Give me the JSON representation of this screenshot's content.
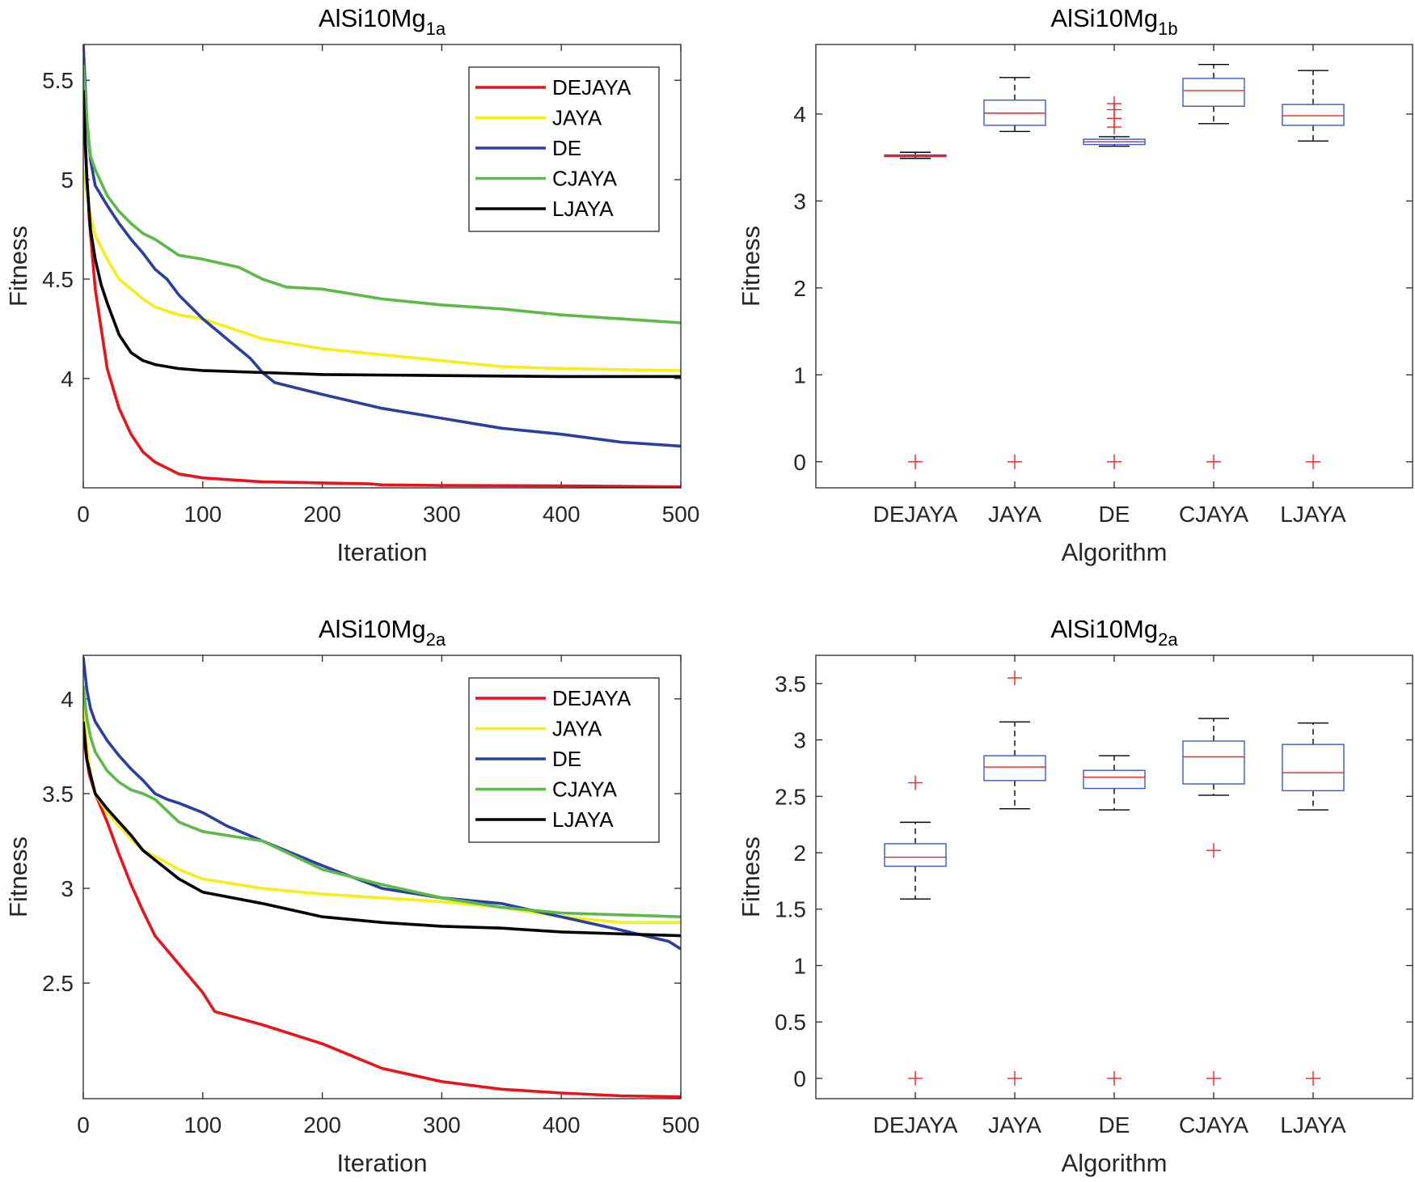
{
  "colors": {
    "DEJAYA": "#e8141b",
    "JAYA": "#f5ee19",
    "DE": "#2a3fa0",
    "CJAYA": "#5cba47",
    "LJAYA": "#000000",
    "box": "#3a58c8",
    "median": "#ee2222",
    "outlier": "#ee2222",
    "whisker": "#000000"
  },
  "chart_data": [
    {
      "id": "p1a",
      "type": "line",
      "title": "AlSi10Mg",
      "title_sub": "1a",
      "xlabel": "Iteration",
      "ylabel": "Fitness",
      "xlim": [
        0,
        500
      ],
      "ylim": [
        3.45,
        5.68
      ],
      "xticks": [
        0,
        100,
        200,
        300,
        400,
        500
      ],
      "yticks": [
        4,
        4.5,
        5,
        5.5
      ],
      "ytick_labels": [
        "4",
        "4.5",
        "5",
        "5.5"
      ],
      "legend": [
        "DEJAYA",
        "JAYA",
        "DE",
        "CJAYA",
        "LJAYA"
      ],
      "legend_position": "top-right",
      "series": [
        {
          "name": "DEJAYA",
          "x": [
            0,
            5,
            10,
            20,
            30,
            40,
            50,
            60,
            80,
            100,
            150,
            200,
            240,
            250,
            300,
            400,
            500
          ],
          "y": [
            5.35,
            4.8,
            4.45,
            4.05,
            3.85,
            3.72,
            3.63,
            3.58,
            3.52,
            3.5,
            3.48,
            3.475,
            3.47,
            3.465,
            3.462,
            3.46,
            3.455
          ]
        },
        {
          "name": "JAYA",
          "x": [
            0,
            5,
            10,
            20,
            30,
            40,
            50,
            60,
            80,
            100,
            150,
            200,
            250,
            300,
            350,
            400,
            450,
            500
          ],
          "y": [
            5.05,
            4.85,
            4.72,
            4.6,
            4.5,
            4.45,
            4.4,
            4.36,
            4.32,
            4.3,
            4.2,
            4.15,
            4.12,
            4.09,
            4.06,
            4.05,
            4.045,
            4.04
          ]
        },
        {
          "name": "DE",
          "x": [
            0,
            3,
            6,
            10,
            20,
            30,
            40,
            50,
            60,
            70,
            80,
            100,
            120,
            140,
            150,
            160,
            200,
            250,
            300,
            350,
            400,
            450,
            500
          ],
          "y": [
            5.68,
            5.3,
            5.1,
            4.97,
            4.87,
            4.78,
            4.7,
            4.63,
            4.55,
            4.5,
            4.42,
            4.3,
            4.2,
            4.1,
            4.03,
            3.98,
            3.92,
            3.85,
            3.8,
            3.75,
            3.72,
            3.68,
            3.66
          ]
        },
        {
          "name": "CJAYA",
          "x": [
            0,
            3,
            6,
            10,
            20,
            30,
            40,
            50,
            60,
            80,
            100,
            130,
            150,
            170,
            200,
            250,
            300,
            350,
            400,
            450,
            500
          ],
          "y": [
            5.58,
            5.3,
            5.12,
            5.05,
            4.92,
            4.84,
            4.78,
            4.73,
            4.7,
            4.62,
            4.6,
            4.56,
            4.5,
            4.46,
            4.45,
            4.4,
            4.37,
            4.35,
            4.32,
            4.3,
            4.28
          ]
        },
        {
          "name": "LJAYA",
          "x": [
            0,
            3,
            6,
            10,
            15,
            20,
            30,
            40,
            50,
            60,
            80,
            100,
            150,
            200,
            300,
            400,
            500
          ],
          "y": [
            5.45,
            5.0,
            4.75,
            4.6,
            4.47,
            4.38,
            4.22,
            4.13,
            4.09,
            4.07,
            4.05,
            4.04,
            4.03,
            4.02,
            4.015,
            4.01,
            4.01
          ]
        }
      ]
    },
    {
      "id": "p1b",
      "type": "box",
      "title": "AlSi10Mg",
      "title_sub": "1b",
      "xlabel": "Algorithm",
      "ylabel": "Fitness",
      "ylim": [
        -0.3,
        4.8
      ],
      "yticks": [
        0,
        1,
        2,
        3,
        4
      ],
      "ytick_labels": [
        "0",
        "1",
        "2",
        "3",
        "4"
      ],
      "categories": [
        "DEJAYA",
        "JAYA",
        "DE",
        "CJAYA",
        "LJAYA"
      ],
      "boxes": [
        {
          "name": "DEJAYA",
          "whisker_low": 3.49,
          "q1": 3.51,
          "median": 3.52,
          "q3": 3.53,
          "whisker_high": 3.56,
          "outliers": [
            0
          ]
        },
        {
          "name": "JAYA",
          "whisker_low": 3.8,
          "q1": 3.87,
          "median": 4.01,
          "q3": 4.16,
          "whisker_high": 4.42,
          "outliers": [
            0
          ]
        },
        {
          "name": "DE",
          "whisker_low": 3.63,
          "q1": 3.65,
          "median": 3.68,
          "q3": 3.71,
          "whisker_high": 3.74,
          "outliers": [
            0,
            3.85,
            3.95,
            4.05,
            4.12
          ]
        },
        {
          "name": "CJAYA",
          "whisker_low": 3.89,
          "q1": 4.09,
          "median": 4.27,
          "q3": 4.41,
          "whisker_high": 4.57,
          "outliers": [
            0
          ]
        },
        {
          "name": "LJAYA",
          "whisker_low": 3.69,
          "q1": 3.87,
          "median": 3.98,
          "q3": 4.11,
          "whisker_high": 4.5,
          "outliers": [
            0
          ]
        }
      ]
    },
    {
      "id": "p2a",
      "type": "line",
      "title": "AlSi10Mg",
      "title_sub": "2a",
      "xlabel": "Iteration",
      "ylabel": "Fitness",
      "xlim": [
        0,
        500
      ],
      "ylim": [
        1.89,
        4.23
      ],
      "xticks": [
        0,
        100,
        200,
        300,
        400,
        500
      ],
      "yticks": [
        2.5,
        3,
        3.5,
        4
      ],
      "ytick_labels": [
        "2.5",
        "3",
        "3.5",
        "4"
      ],
      "legend": [
        "DEJAYA",
        "JAYA",
        "DE",
        "CJAYA",
        "LJAYA"
      ],
      "legend_position": "top-right",
      "series": [
        {
          "name": "DEJAYA",
          "x": [
            0,
            5,
            10,
            20,
            30,
            40,
            50,
            60,
            80,
            100,
            110,
            150,
            200,
            250,
            300,
            350,
            400,
            450,
            500
          ],
          "y": [
            3.8,
            3.6,
            3.5,
            3.35,
            3.18,
            3.02,
            2.88,
            2.75,
            2.6,
            2.45,
            2.35,
            2.28,
            2.18,
            2.05,
            1.98,
            1.94,
            1.92,
            1.905,
            1.9
          ]
        },
        {
          "name": "JAYA",
          "x": [
            0,
            3,
            6,
            10,
            20,
            30,
            40,
            50,
            60,
            80,
            100,
            150,
            200,
            250,
            300,
            350,
            400,
            450,
            500
          ],
          "y": [
            4.0,
            3.75,
            3.6,
            3.5,
            3.4,
            3.33,
            3.26,
            3.2,
            3.17,
            3.1,
            3.05,
            3.0,
            2.97,
            2.95,
            2.93,
            2.9,
            2.85,
            2.82,
            2.82
          ]
        },
        {
          "name": "DE",
          "x": [
            0,
            3,
            6,
            10,
            20,
            30,
            40,
            50,
            60,
            70,
            80,
            100,
            120,
            150,
            200,
            250,
            300,
            350,
            400,
            450,
            490,
            500
          ],
          "y": [
            4.22,
            4.05,
            3.95,
            3.88,
            3.78,
            3.7,
            3.63,
            3.57,
            3.5,
            3.47,
            3.45,
            3.4,
            3.33,
            3.25,
            3.12,
            3.0,
            2.95,
            2.92,
            2.85,
            2.78,
            2.72,
            2.68
          ]
        },
        {
          "name": "CJAYA",
          "x": [
            0,
            3,
            6,
            10,
            20,
            30,
            40,
            50,
            60,
            80,
            100,
            120,
            150,
            200,
            250,
            300,
            350,
            400,
            450,
            500
          ],
          "y": [
            4.07,
            3.9,
            3.8,
            3.72,
            3.62,
            3.56,
            3.52,
            3.5,
            3.47,
            3.35,
            3.3,
            3.28,
            3.25,
            3.1,
            3.02,
            2.95,
            2.9,
            2.87,
            2.86,
            2.85
          ]
        },
        {
          "name": "LJAYA",
          "x": [
            0,
            3,
            6,
            10,
            20,
            30,
            40,
            50,
            60,
            80,
            100,
            150,
            200,
            250,
            300,
            350,
            400,
            450,
            500
          ],
          "y": [
            3.88,
            3.68,
            3.6,
            3.5,
            3.42,
            3.35,
            3.28,
            3.2,
            3.15,
            3.05,
            2.98,
            2.92,
            2.85,
            2.82,
            2.8,
            2.79,
            2.77,
            2.76,
            2.75
          ]
        }
      ]
    },
    {
      "id": "p2b",
      "type": "box",
      "title": "AlSi10Mg",
      "title_sub": "2a",
      "xlabel": "Algorithm",
      "ylabel": "Fitness",
      "ylim": [
        -0.18,
        3.75
      ],
      "yticks": [
        0,
        0.5,
        1,
        1.5,
        2,
        2.5,
        3,
        3.5
      ],
      "ytick_labels": [
        "0",
        "0.5",
        "1",
        "1.5",
        "2",
        "2.5",
        "3",
        "3.5"
      ],
      "categories": [
        "DEJAYA",
        "JAYA",
        "DE",
        "CJAYA",
        "LJAYA"
      ],
      "boxes": [
        {
          "name": "DEJAYA",
          "whisker_low": 1.59,
          "q1": 1.88,
          "median": 1.96,
          "q3": 2.08,
          "whisker_high": 2.27,
          "outliers": [
            0,
            2.62
          ]
        },
        {
          "name": "JAYA",
          "whisker_low": 2.39,
          "q1": 2.64,
          "median": 2.76,
          "q3": 2.86,
          "whisker_high": 3.16,
          "outliers": [
            0,
            3.55
          ]
        },
        {
          "name": "DE",
          "whisker_low": 2.38,
          "q1": 2.57,
          "median": 2.67,
          "q3": 2.73,
          "whisker_high": 2.86,
          "outliers": [
            0
          ]
        },
        {
          "name": "CJAYA",
          "whisker_low": 2.51,
          "q1": 2.61,
          "median": 2.85,
          "q3": 2.99,
          "whisker_high": 3.19,
          "outliers": [
            0,
            2.02
          ]
        },
        {
          "name": "LJAYA",
          "whisker_low": 2.38,
          "q1": 2.55,
          "median": 2.71,
          "q3": 2.96,
          "whisker_high": 3.15,
          "outliers": [
            0
          ]
        }
      ]
    }
  ]
}
